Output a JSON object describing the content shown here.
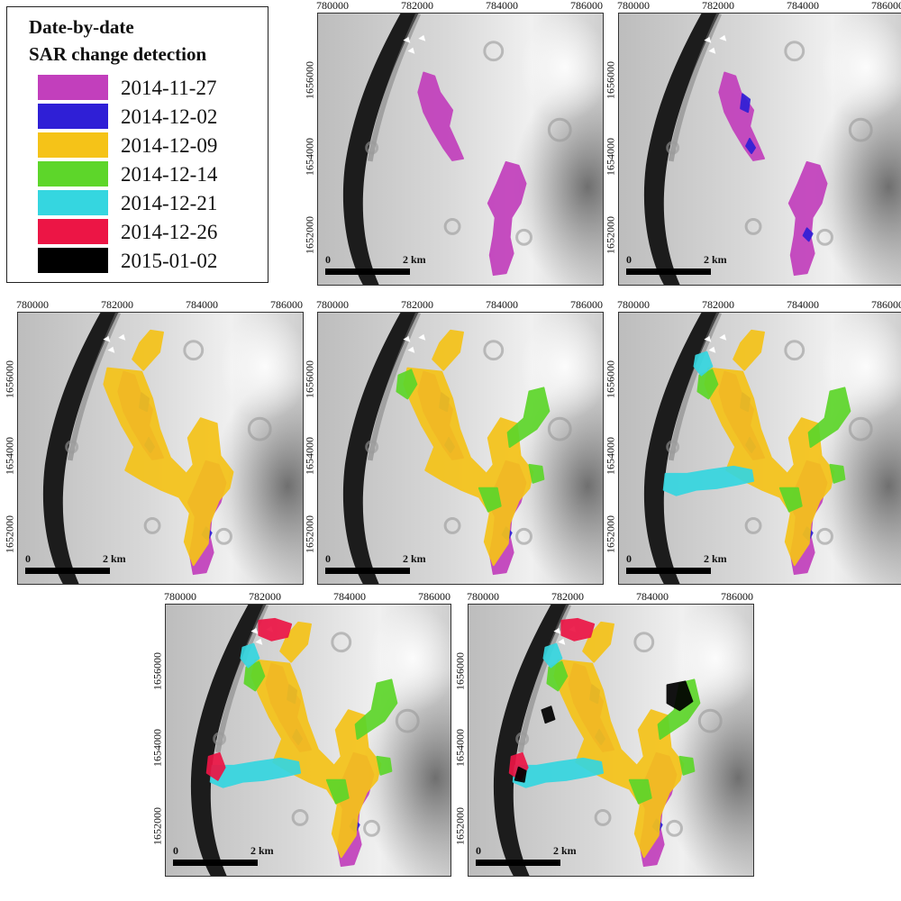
{
  "legend": {
    "title_line1": "Date-by-date",
    "title_line2": "SAR change detection",
    "items": [
      {
        "label": "2014-11-27",
        "color": "#c23fbc"
      },
      {
        "label": "2014-12-02",
        "color": "#2f1fd6"
      },
      {
        "label": "2014-12-09",
        "color": "#f5c318"
      },
      {
        "label": "2014-12-14",
        "color": "#5dd62a"
      },
      {
        "label": "2014-12-21",
        "color": "#35d6e0"
      },
      {
        "label": "2014-12-26",
        "color": "#ec1545"
      },
      {
        "label": "2015-01-02",
        "color": "#000000"
      }
    ]
  },
  "axes": {
    "x_ticks": [
      "780000",
      "782000",
      "784000",
      "786000"
    ],
    "y_ticks": [
      "1656000",
      "1654000",
      "1652000"
    ]
  },
  "scalebar": {
    "zero_label": "0",
    "distance_label": "2 km"
  },
  "panels": [
    {
      "dates_shown": [
        "2014-11-27"
      ]
    },
    {
      "dates_shown": [
        "2014-11-27",
        "2014-12-02"
      ]
    },
    {
      "dates_shown": [
        "2014-11-27",
        "2014-12-02",
        "2014-12-09"
      ]
    },
    {
      "dates_shown": [
        "2014-11-27",
        "2014-12-02",
        "2014-12-09",
        "2014-12-14"
      ]
    },
    {
      "dates_shown": [
        "2014-11-27",
        "2014-12-02",
        "2014-12-09",
        "2014-12-14",
        "2014-12-21"
      ]
    },
    {
      "dates_shown": [
        "2014-11-27",
        "2014-12-02",
        "2014-12-09",
        "2014-12-14",
        "2014-12-21",
        "2014-12-26"
      ]
    },
    {
      "dates_shown": [
        "2014-11-27",
        "2014-12-02",
        "2014-12-09",
        "2014-12-14",
        "2014-12-21",
        "2014-12-26",
        "2015-01-02"
      ]
    }
  ]
}
